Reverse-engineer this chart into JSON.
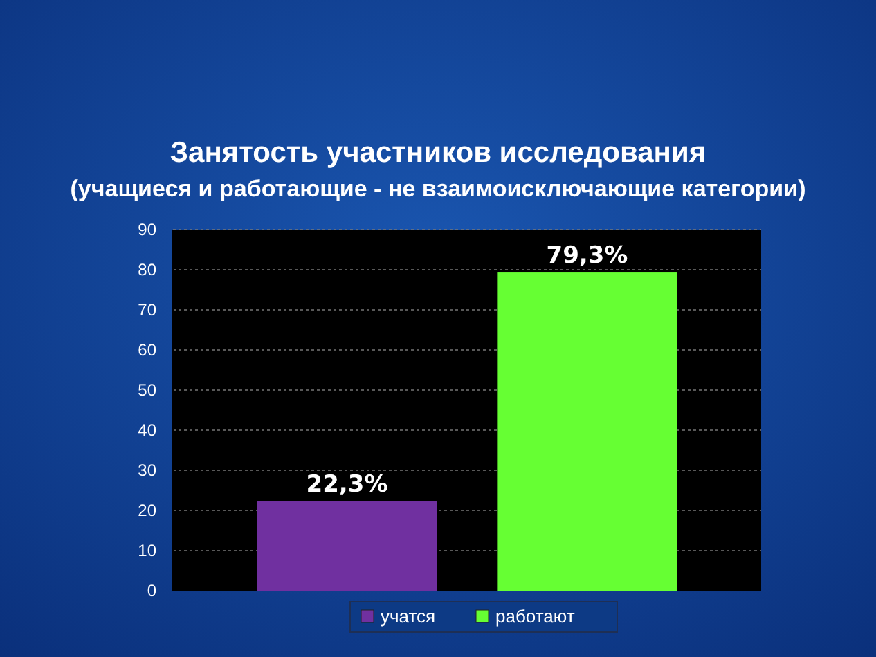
{
  "chart_data": {
    "type": "bar",
    "title": "Занятость участников исследования",
    "subtitle": "(учащиеся и работающие - не взаимоисключающие категории)",
    "categories": [
      null
    ],
    "series": [
      {
        "name": "учатся",
        "color": "#7030a0",
        "values": [
          22.3
        ],
        "value_labels": [
          "22,3%"
        ]
      },
      {
        "name": "работают",
        "color": "#66ff33",
        "values": [
          79.3
        ],
        "value_labels": [
          "79,3%"
        ]
      }
    ],
    "ylim": [
      0,
      90
    ],
    "yticks": [
      0,
      10,
      20,
      30,
      40,
      50,
      60,
      70,
      80,
      90
    ],
    "grid": "y",
    "legend": "bottom"
  }
}
